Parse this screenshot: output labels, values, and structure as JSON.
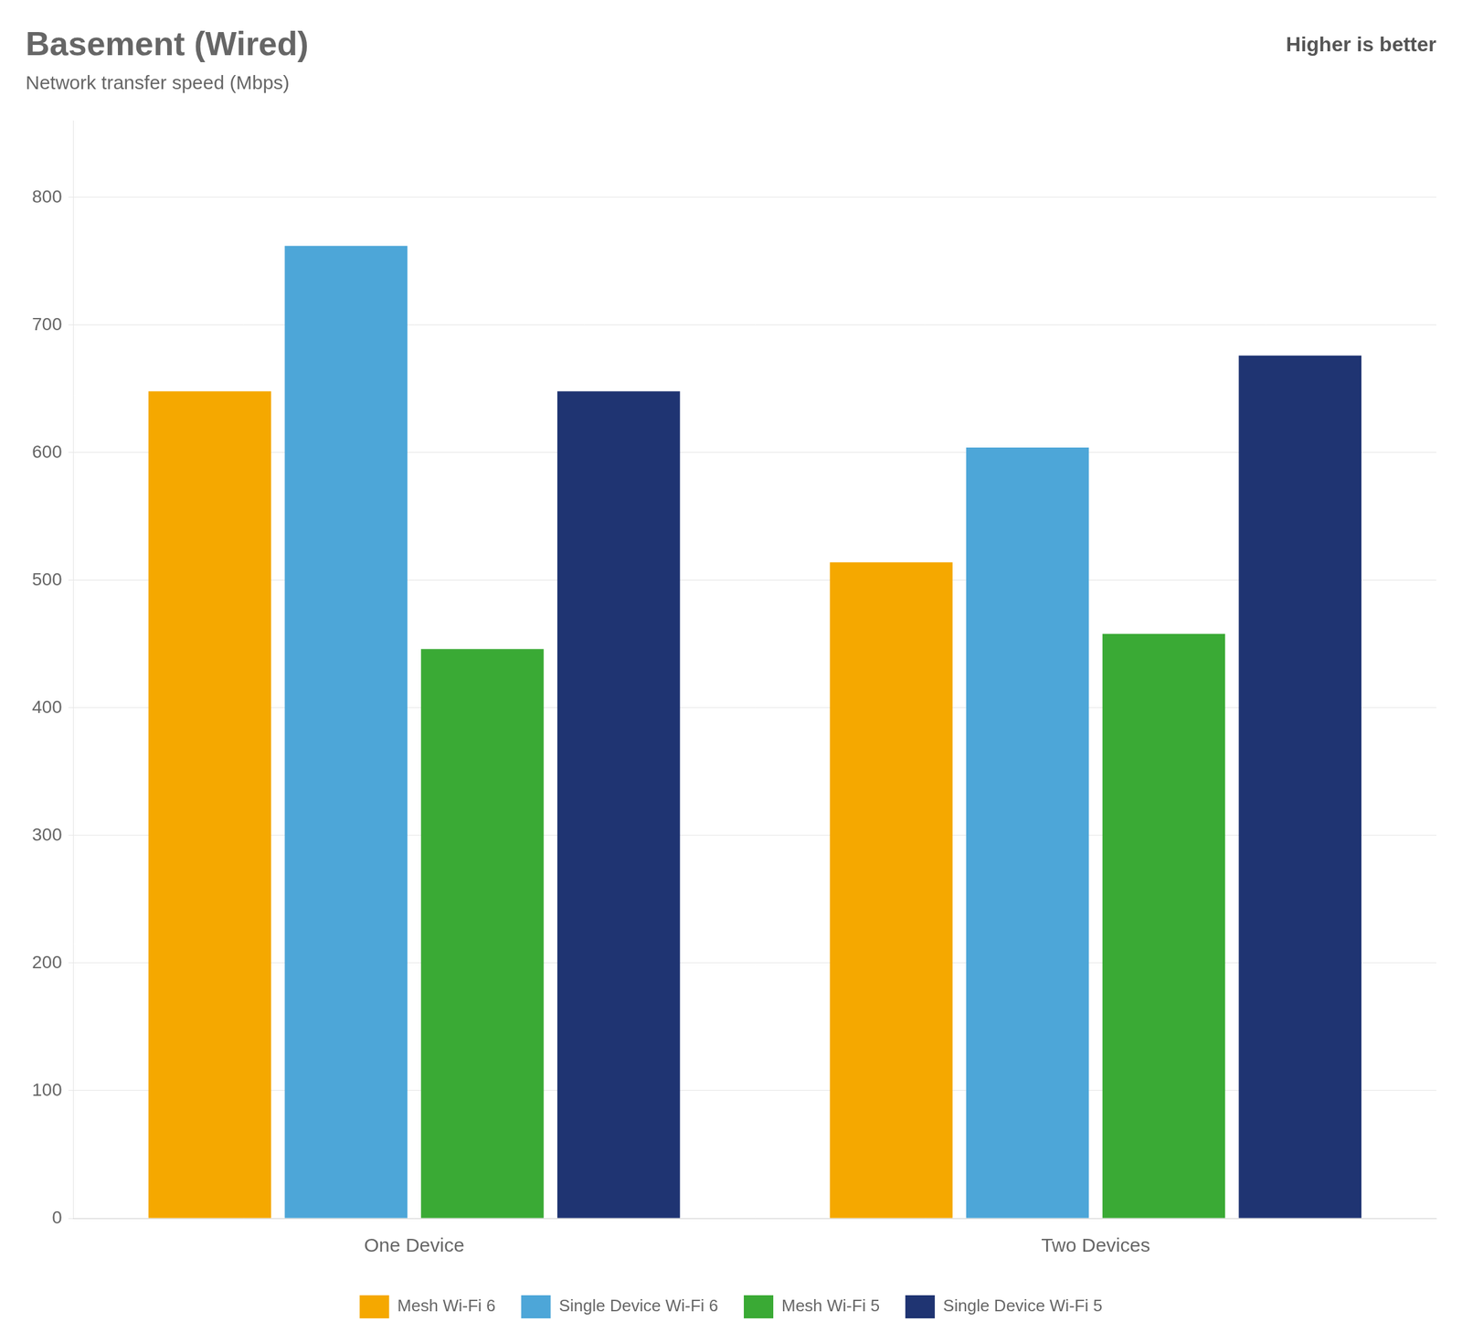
{
  "chart_data": {
    "type": "bar",
    "title": "Basement (Wired)",
    "subtitle": "Network transfer speed (Mbps)",
    "annotations": [
      "Higher is better"
    ],
    "categories": [
      "One Device",
      "Two Devices"
    ],
    "series": [
      {
        "name": "Mesh Wi-Fi 6",
        "color": "#F5A800",
        "values": [
          648,
          514
        ]
      },
      {
        "name": "Single Device Wi-Fi 6",
        "color": "#4DA6D8",
        "values": [
          762,
          604
        ]
      },
      {
        "name": "Mesh Wi-Fi 5",
        "color": "#3AAA35",
        "values": [
          446,
          458
        ]
      },
      {
        "name": "Single Device Wi-Fi 5",
        "color": "#1F3472",
        "values": [
          648,
          676
        ]
      }
    ],
    "ylim": [
      0,
      860
    ],
    "yticks": [
      0,
      100,
      200,
      300,
      400,
      500,
      600,
      700,
      800
    ],
    "grid": true,
    "legend": "bottom"
  }
}
